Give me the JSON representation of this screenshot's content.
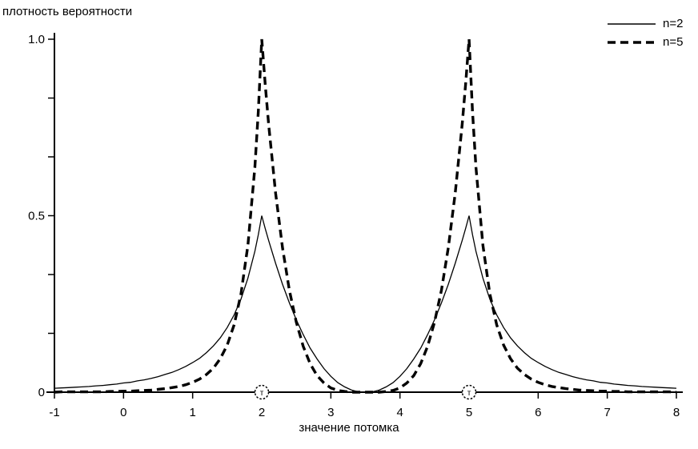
{
  "colors": {
    "background": "#ffffff",
    "foreground": "#000000"
  },
  "chart_data": {
    "type": "line",
    "title": "",
    "ylabel": "плотность вероятности",
    "xlabel": "значение потомка",
    "xlim": [
      -1,
      8
    ],
    "ylim": [
      0,
      1.0
    ],
    "grid": false,
    "legend_position": "top-right",
    "x_ticks": [
      {
        "v": -1,
        "label": "-1"
      },
      {
        "v": 0,
        "label": "0"
      },
      {
        "v": 1,
        "label": "1"
      },
      {
        "v": 2,
        "label": "2"
      },
      {
        "v": 3,
        "label": "3"
      },
      {
        "v": 4,
        "label": "4"
      },
      {
        "v": 5,
        "label": "5"
      },
      {
        "v": 6,
        "label": "6"
      },
      {
        "v": 7,
        "label": "7"
      },
      {
        "v": 8,
        "label": "8"
      }
    ],
    "y_ticks": [
      {
        "v": 0,
        "label": "0"
      },
      {
        "v": 0.1667,
        "label": ""
      },
      {
        "v": 0.3333,
        "label": ""
      },
      {
        "v": 0.5,
        "label": "0.5"
      },
      {
        "v": 0.6667,
        "label": ""
      },
      {
        "v": 0.8333,
        "label": ""
      },
      {
        "v": 1.0,
        "label": "1.0"
      }
    ],
    "axis_markers": [
      {
        "x": 2,
        "label": "т"
      },
      {
        "x": 5,
        "label": "т"
      }
    ],
    "peaks": {
      "centers": [
        2,
        5
      ],
      "peak_height_n2": 0.5,
      "peak_height_n5": 1.0,
      "trough_x": 3.5
    },
    "x": [
      -1,
      -0.9,
      -0.8,
      -0.7,
      -0.6,
      -0.5,
      -0.4,
      -0.3,
      -0.2,
      -0.1,
      0,
      0.1,
      0.2,
      0.3,
      0.4,
      0.5,
      0.6,
      0.7,
      0.8,
      0.9,
      1,
      1.1,
      1.2,
      1.3,
      1.4,
      1.5,
      1.6,
      1.7,
      1.8,
      1.9,
      1.95,
      2,
      2.05,
      2.1,
      2.2,
      2.3,
      2.4,
      2.5,
      2.6,
      2.7,
      2.8,
      2.9,
      3,
      3.1,
      3.2,
      3.3,
      3.4,
      3.5,
      3.6,
      3.7,
      3.8,
      3.9,
      4,
      4.1,
      4.2,
      4.3,
      4.4,
      4.5,
      4.6,
      4.7,
      4.8,
      4.9,
      4.95,
      5,
      5.05,
      5.1,
      5.2,
      5.3,
      5.4,
      5.5,
      5.6,
      5.7,
      5.8,
      5.9,
      6,
      6.1,
      6.2,
      6.3,
      6.4,
      6.5,
      6.6,
      6.7,
      6.8,
      6.9,
      7,
      7.1,
      7.2,
      7.3,
      7.4,
      7.5,
      7.6,
      7.7,
      7.8,
      7.9,
      8
    ],
    "series": [
      {
        "name": "n=2",
        "style": "solid",
        "line_width": 1.3,
        "color": "#000000",
        "values": [
          0.011,
          0.012,
          0.013,
          0.014,
          0.015,
          0.016,
          0.018,
          0.019,
          0.021,
          0.023,
          0.026,
          0.028,
          0.032,
          0.035,
          0.039,
          0.044,
          0.05,
          0.056,
          0.064,
          0.073,
          0.084,
          0.096,
          0.112,
          0.131,
          0.154,
          0.183,
          0.219,
          0.264,
          0.323,
          0.399,
          0.446,
          0.5,
          0.464,
          0.43,
          0.365,
          0.306,
          0.253,
          0.205,
          0.163,
          0.125,
          0.094,
          0.067,
          0.045,
          0.027,
          0.015,
          0.006,
          0.001,
          0,
          0.001,
          0.006,
          0.015,
          0.027,
          0.045,
          0.067,
          0.094,
          0.125,
          0.163,
          0.205,
          0.253,
          0.306,
          0.365,
          0.43,
          0.464,
          0.5,
          0.446,
          0.399,
          0.323,
          0.264,
          0.219,
          0.183,
          0.154,
          0.131,
          0.112,
          0.096,
          0.084,
          0.073,
          0.064,
          0.056,
          0.05,
          0.044,
          0.039,
          0.035,
          0.032,
          0.028,
          0.026,
          0.023,
          0.021,
          0.019,
          0.018,
          0.016,
          0.015,
          0.014,
          0.013,
          0.012,
          0.011
        ]
      },
      {
        "name": "n=5",
        "style": "dashed",
        "line_width": 3.4,
        "dash": [
          10,
          6
        ],
        "color": "#000000",
        "values": [
          0,
          0.001,
          0.001,
          0.001,
          0.001,
          0.001,
          0.001,
          0.001,
          0.002,
          0.002,
          0.003,
          0.003,
          0.004,
          0.005,
          0.006,
          0.008,
          0.01,
          0.013,
          0.016,
          0.021,
          0.028,
          0.037,
          0.05,
          0.068,
          0.095,
          0.133,
          0.191,
          0.279,
          0.416,
          0.637,
          0.795,
          1,
          0.873,
          0.759,
          0.564,
          0.41,
          0.289,
          0.198,
          0.13,
          0.081,
          0.047,
          0.026,
          0.012,
          0.005,
          0.002,
          0,
          0,
          0,
          0,
          0,
          0.002,
          0.005,
          0.012,
          0.026,
          0.047,
          0.081,
          0.13,
          0.198,
          0.289,
          0.41,
          0.564,
          0.759,
          0.873,
          1,
          0.795,
          0.637,
          0.416,
          0.279,
          0.191,
          0.133,
          0.095,
          0.068,
          0.05,
          0.037,
          0.028,
          0.021,
          0.016,
          0.013,
          0.01,
          0.008,
          0.006,
          0.005,
          0.004,
          0.003,
          0.003,
          0.002,
          0.002,
          0.001,
          0.001,
          0.001,
          0.001,
          0.001,
          0.001,
          0.001,
          0
        ]
      }
    ]
  }
}
